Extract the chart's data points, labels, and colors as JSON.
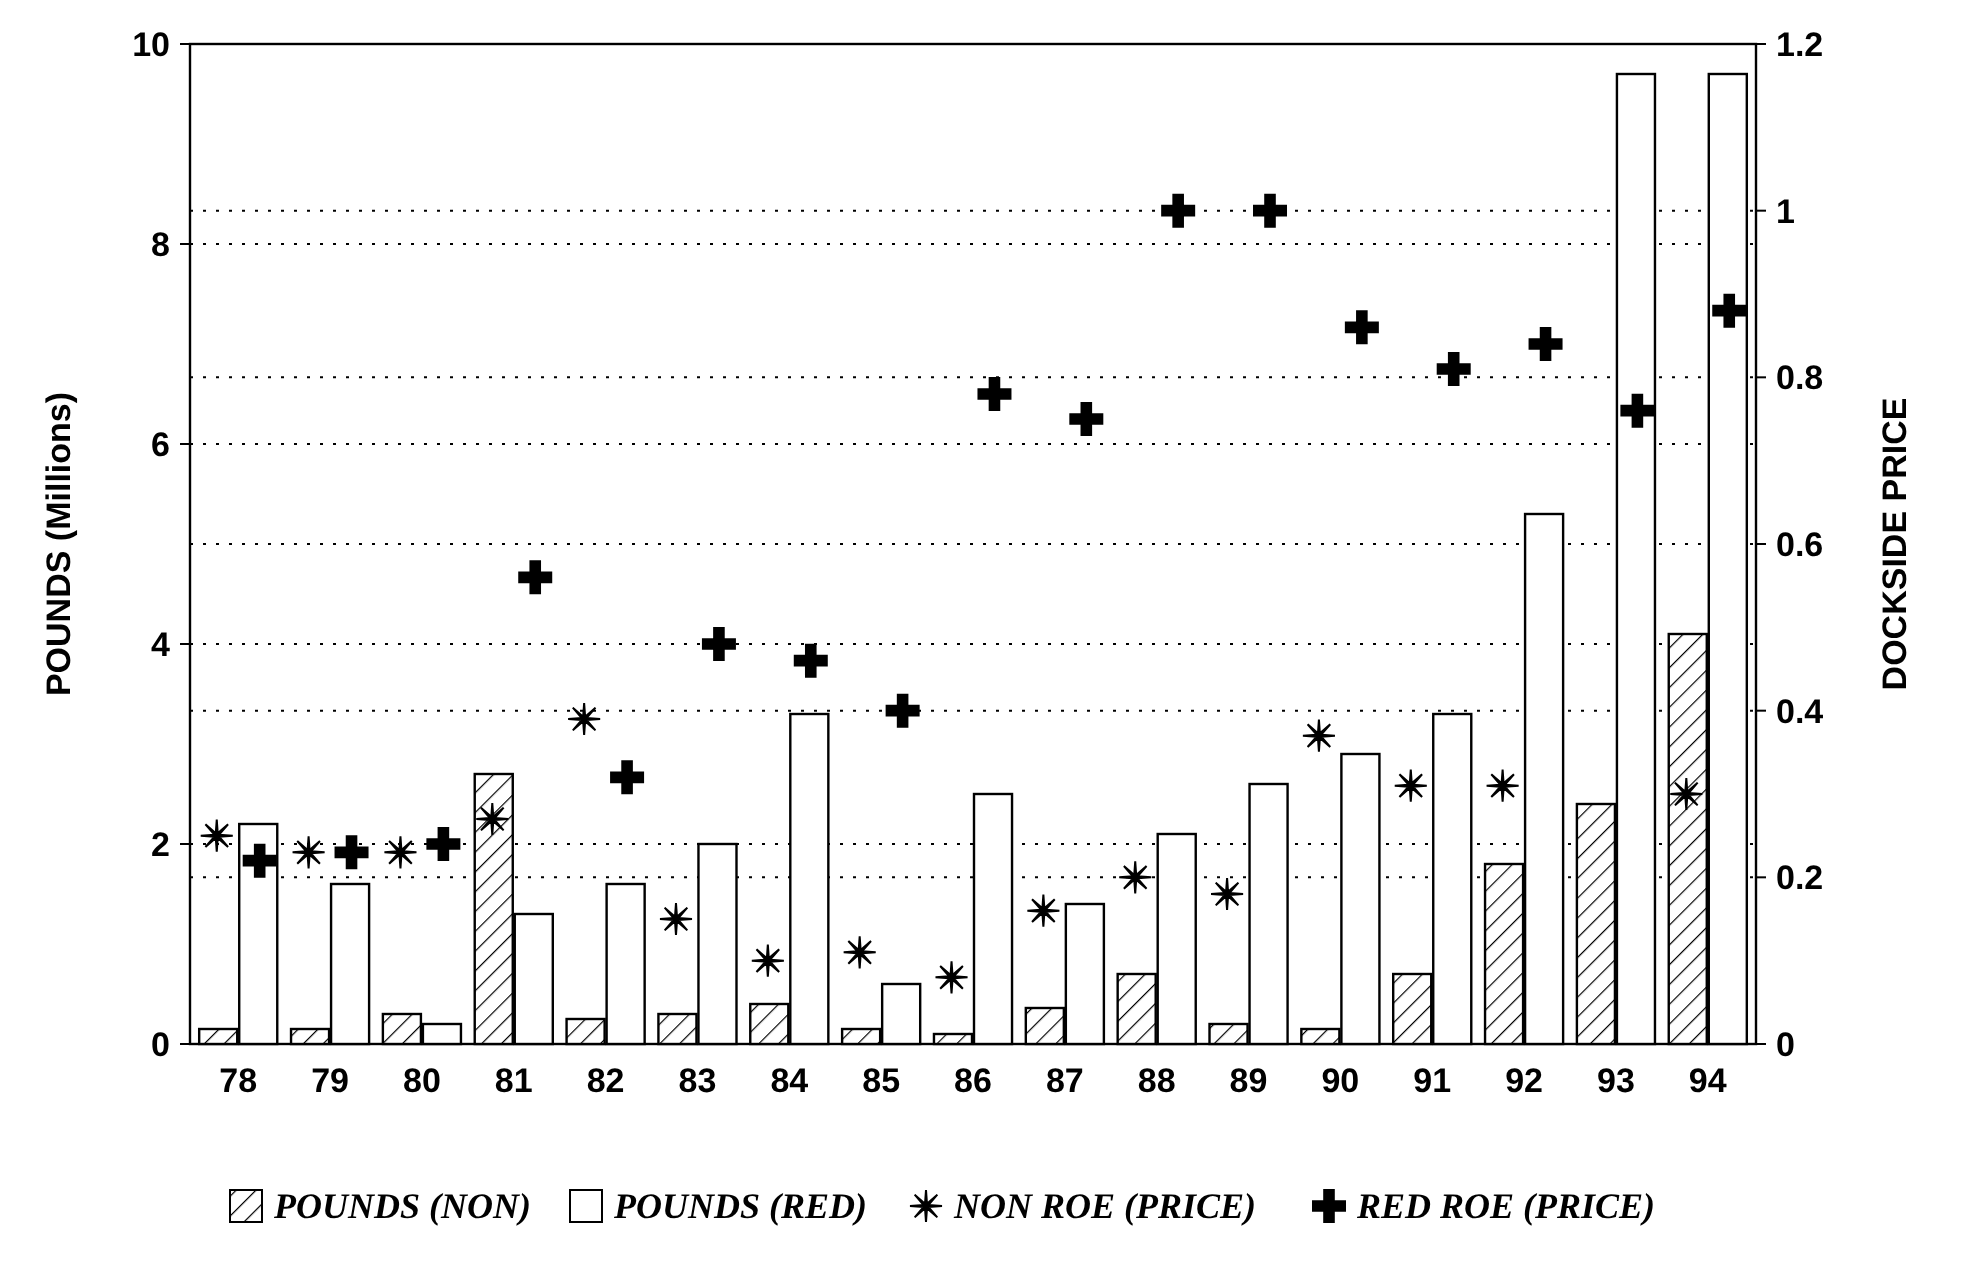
{
  "chart_data": {
    "type": "bar",
    "categories": [
      "78",
      "79",
      "80",
      "81",
      "82",
      "83",
      "84",
      "85",
      "86",
      "87",
      "88",
      "89",
      "90",
      "91",
      "92",
      "93",
      "94"
    ],
    "ylabel": "POUNDS (Millions)",
    "y2label": "DOCKSIDE PRICE",
    "ylim": [
      0,
      10
    ],
    "yticks": [
      0,
      2,
      4,
      6,
      8,
      10
    ],
    "y2lim": [
      0,
      1.2
    ],
    "y2ticks": [
      0,
      0.2,
      0.4,
      0.6,
      0.8,
      1,
      1.2
    ],
    "grid": true,
    "line_style": "dotted",
    "legend": "bottom",
    "series": [
      {
        "name": "POUNDS (NON)",
        "color": "#000000",
        "values": [
          0.15,
          0.15,
          0.3,
          2.7,
          0.25,
          0.3,
          0.4,
          0.15,
          0.1,
          0.36,
          0.7,
          0.2,
          0.15,
          0.7,
          1.8,
          2.4,
          4.1
        ]
      },
      {
        "name": "POUNDS (RED)",
        "color": "#ffffff",
        "values": [
          2.2,
          1.6,
          0.2,
          1.3,
          1.6,
          2.0,
          3.3,
          0.6,
          2.5,
          1.4,
          2.1,
          2.6,
          2.9,
          3.3,
          5.3,
          9.7,
          9.7
        ]
      },
      {
        "name": "NON ROE (PRICE)",
        "type": "scatter",
        "axis": "y2",
        "marker": "star",
        "color": "#000000",
        "values": [
          0.25,
          0.23,
          0.23,
          0.27,
          0.39,
          0.15,
          0.1,
          0.11,
          0.08,
          0.16,
          0.2,
          0.18,
          0.37,
          0.31,
          0.31,
          null,
          0.3
        ]
      },
      {
        "name": "RED ROE (PRICE)",
        "type": "scatter",
        "axis": "y2",
        "marker": "cross",
        "color": "#000000",
        "values": [
          0.22,
          0.23,
          0.24,
          0.56,
          0.32,
          0.48,
          0.46,
          0.4,
          0.78,
          0.75,
          1,
          1,
          0.86,
          0.81,
          0.84,
          0.76,
          0.88
        ]
      }
    ]
  }
}
